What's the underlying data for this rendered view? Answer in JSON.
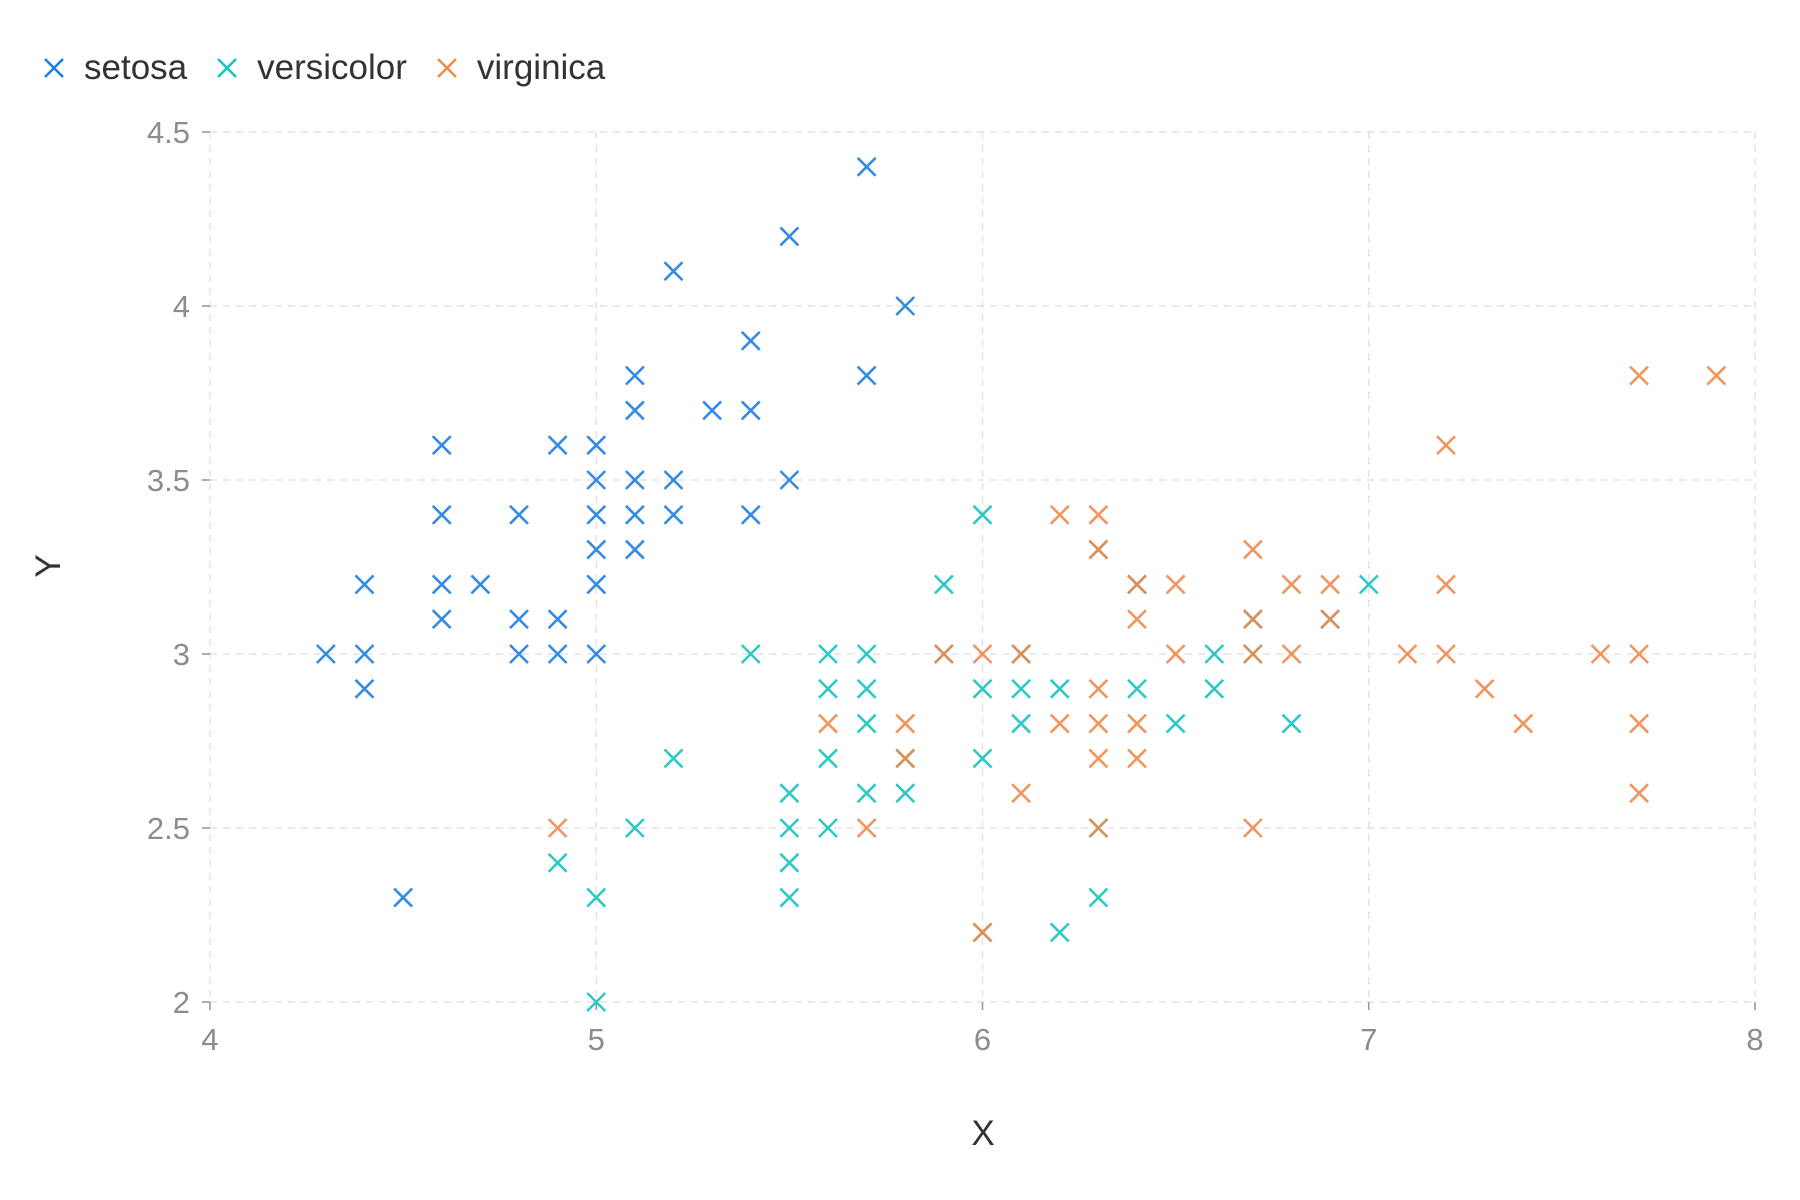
{
  "chart_data": {
    "type": "scatter",
    "title": "",
    "xlabel": "X",
    "ylabel": "Y",
    "xlim": [
      4,
      8
    ],
    "ylim": [
      2,
      4.5
    ],
    "x_ticks": [
      "4",
      "5",
      "6",
      "7",
      "8"
    ],
    "y_ticks": [
      "2",
      "2.5",
      "3",
      "3.5",
      "4",
      "4.5"
    ],
    "grid": true,
    "legend_position": "top-left",
    "marker": "x",
    "series": [
      {
        "name": "setosa",
        "color": "#1f7fe0",
        "points": [
          [
            4.3,
            3.0
          ],
          [
            4.4,
            3.2
          ],
          [
            4.4,
            3.0
          ],
          [
            4.4,
            2.9
          ],
          [
            4.5,
            2.3
          ],
          [
            4.6,
            3.6
          ],
          [
            4.6,
            3.4
          ],
          [
            4.6,
            3.2
          ],
          [
            4.6,
            3.1
          ],
          [
            4.7,
            3.2
          ],
          [
            4.8,
            3.4
          ],
          [
            4.8,
            3.1
          ],
          [
            4.8,
            3.0
          ],
          [
            4.9,
            3.6
          ],
          [
            4.9,
            3.1
          ],
          [
            4.9,
            3.0
          ],
          [
            5.0,
            3.6
          ],
          [
            5.0,
            3.5
          ],
          [
            5.0,
            3.4
          ],
          [
            5.0,
            3.3
          ],
          [
            5.0,
            3.2
          ],
          [
            5.0,
            3.0
          ],
          [
            5.1,
            3.8
          ],
          [
            5.1,
            3.7
          ],
          [
            5.1,
            3.5
          ],
          [
            5.1,
            3.4
          ],
          [
            5.1,
            3.3
          ],
          [
            5.2,
            4.1
          ],
          [
            5.2,
            3.5
          ],
          [
            5.2,
            3.4
          ],
          [
            5.3,
            3.7
          ],
          [
            5.4,
            3.9
          ],
          [
            5.4,
            3.7
          ],
          [
            5.4,
            3.4
          ],
          [
            5.5,
            4.2
          ],
          [
            5.5,
            3.5
          ],
          [
            5.7,
            4.4
          ],
          [
            5.7,
            3.8
          ],
          [
            5.8,
            4.0
          ]
        ]
      },
      {
        "name": "versicolor",
        "color": "#17c4c0",
        "points": [
          [
            4.9,
            2.4
          ],
          [
            5.0,
            2.3
          ],
          [
            5.0,
            2.0
          ],
          [
            5.1,
            2.5
          ],
          [
            5.2,
            2.7
          ],
          [
            5.4,
            3.0
          ],
          [
            5.5,
            2.6
          ],
          [
            5.5,
            2.5
          ],
          [
            5.5,
            2.4
          ],
          [
            5.5,
            2.3
          ],
          [
            5.6,
            3.0
          ],
          [
            5.6,
            2.9
          ],
          [
            5.6,
            2.7
          ],
          [
            5.6,
            2.5
          ],
          [
            5.7,
            3.0
          ],
          [
            5.7,
            2.9
          ],
          [
            5.7,
            2.8
          ],
          [
            5.7,
            2.6
          ],
          [
            5.8,
            2.7
          ],
          [
            5.8,
            2.6
          ],
          [
            5.9,
            3.2
          ],
          [
            5.9,
            3.0
          ],
          [
            6.0,
            3.4
          ],
          [
            6.0,
            2.9
          ],
          [
            6.0,
            2.7
          ],
          [
            6.0,
            2.2
          ],
          [
            6.1,
            3.0
          ],
          [
            6.1,
            2.9
          ],
          [
            6.1,
            2.8
          ],
          [
            6.2,
            2.9
          ],
          [
            6.2,
            2.2
          ],
          [
            6.3,
            3.3
          ],
          [
            6.3,
            2.5
          ],
          [
            6.3,
            2.3
          ],
          [
            6.4,
            3.2
          ],
          [
            6.4,
            2.9
          ],
          [
            6.5,
            2.8
          ],
          [
            6.6,
            3.0
          ],
          [
            6.6,
            2.9
          ],
          [
            6.7,
            3.1
          ],
          [
            6.7,
            3.0
          ],
          [
            6.8,
            2.8
          ],
          [
            6.9,
            3.1
          ],
          [
            7.0,
            3.2
          ]
        ]
      },
      {
        "name": "virginica",
        "color": "#f08a4b",
        "points": [
          [
            4.9,
            2.5
          ],
          [
            5.6,
            2.8
          ],
          [
            5.7,
            2.5
          ],
          [
            5.8,
            2.8
          ],
          [
            5.8,
            2.7
          ],
          [
            5.9,
            3.0
          ],
          [
            6.0,
            3.0
          ],
          [
            6.0,
            2.2
          ],
          [
            6.1,
            3.0
          ],
          [
            6.1,
            2.6
          ],
          [
            6.2,
            3.4
          ],
          [
            6.2,
            2.8
          ],
          [
            6.3,
            3.4
          ],
          [
            6.3,
            3.3
          ],
          [
            6.3,
            2.9
          ],
          [
            6.3,
            2.8
          ],
          [
            6.3,
            2.7
          ],
          [
            6.3,
            2.5
          ],
          [
            6.4,
            3.2
          ],
          [
            6.4,
            3.1
          ],
          [
            6.4,
            2.8
          ],
          [
            6.4,
            2.7
          ],
          [
            6.5,
            3.2
          ],
          [
            6.5,
            3.0
          ],
          [
            6.7,
            3.3
          ],
          [
            6.7,
            3.1
          ],
          [
            6.7,
            3.0
          ],
          [
            6.7,
            2.5
          ],
          [
            6.8,
            3.2
          ],
          [
            6.8,
            3.0
          ],
          [
            6.9,
            3.2
          ],
          [
            6.9,
            3.1
          ],
          [
            7.1,
            3.0
          ],
          [
            7.2,
            3.6
          ],
          [
            7.2,
            3.2
          ],
          [
            7.2,
            3.0
          ],
          [
            7.3,
            2.9
          ],
          [
            7.4,
            2.8
          ],
          [
            7.6,
            3.0
          ],
          [
            7.7,
            3.8
          ],
          [
            7.7,
            3.0
          ],
          [
            7.7,
            2.8
          ],
          [
            7.7,
            2.6
          ],
          [
            7.9,
            3.8
          ]
        ]
      }
    ]
  }
}
